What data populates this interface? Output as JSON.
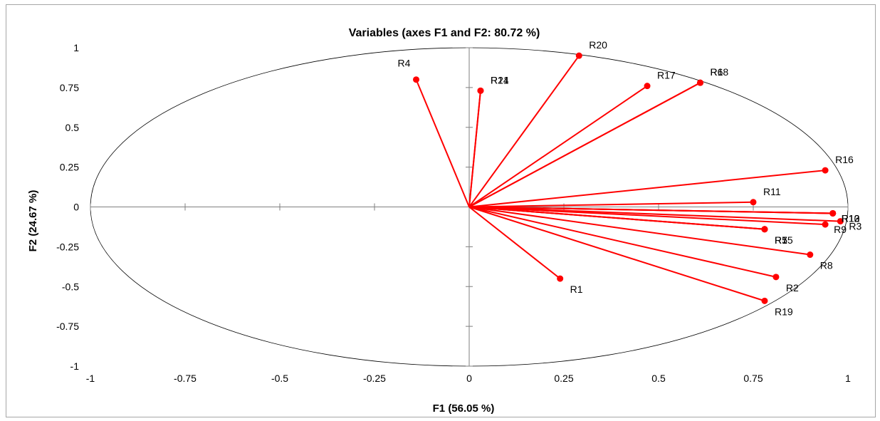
{
  "chart_data": {
    "type": "scatter",
    "title": "Variables (axes F1 and F2: 80.72 %)",
    "xlabel": "F1 (56.05 %)",
    "ylabel": "F2 (24.67 %)",
    "xlim": [
      -1,
      1
    ],
    "ylim": [
      -1,
      1
    ],
    "xticks": [
      "-1",
      "-0.75",
      "-0.5",
      "-0.25",
      "0",
      "0.25",
      "0.5",
      "0.75",
      "1"
    ],
    "yticks": [
      "1",
      "0.75",
      "0.5",
      "0.25",
      "0",
      "-0.25",
      "-0.5",
      "-0.75",
      "-1"
    ],
    "grid": false,
    "unit_circle": true,
    "vector_color": "#ff0000",
    "points": [
      {
        "label": "R1",
        "x": 0.24,
        "y": -0.45
      },
      {
        "label": "R2",
        "x": 0.81,
        "y": -0.44
      },
      {
        "label": "R3",
        "x": 0.98,
        "y": -0.09
      },
      {
        "label": "R4",
        "x": -0.14,
        "y": 0.8
      },
      {
        "label": "R5",
        "x": 0.78,
        "y": -0.14
      },
      {
        "label": "R6",
        "x": 0.61,
        "y": 0.78
      },
      {
        "label": "R7",
        "x": 0.78,
        "y": -0.14
      },
      {
        "label": "R8",
        "x": 0.9,
        "y": -0.3
      },
      {
        "label": "R9",
        "x": 0.94,
        "y": -0.11
      },
      {
        "label": "R10",
        "x": 0.96,
        "y": -0.04
      },
      {
        "label": "R11",
        "x": 0.75,
        "y": 0.03
      },
      {
        "label": "R12",
        "x": 0.96,
        "y": -0.04
      },
      {
        "label": "R13",
        "x": 0.96,
        "y": -0.04
      },
      {
        "label": "R14",
        "x": 0.03,
        "y": 0.73
      },
      {
        "label": "R15",
        "x": 0.78,
        "y": -0.14
      },
      {
        "label": "R16",
        "x": 0.94,
        "y": 0.23
      },
      {
        "label": "R17",
        "x": 0.47,
        "y": 0.76
      },
      {
        "label": "R18",
        "x": 0.61,
        "y": 0.78
      },
      {
        "label": "R19",
        "x": 0.78,
        "y": -0.59
      },
      {
        "label": "R20",
        "x": 0.29,
        "y": 0.95
      },
      {
        "label": "R21",
        "x": 0.03,
        "y": 0.73
      }
    ]
  }
}
